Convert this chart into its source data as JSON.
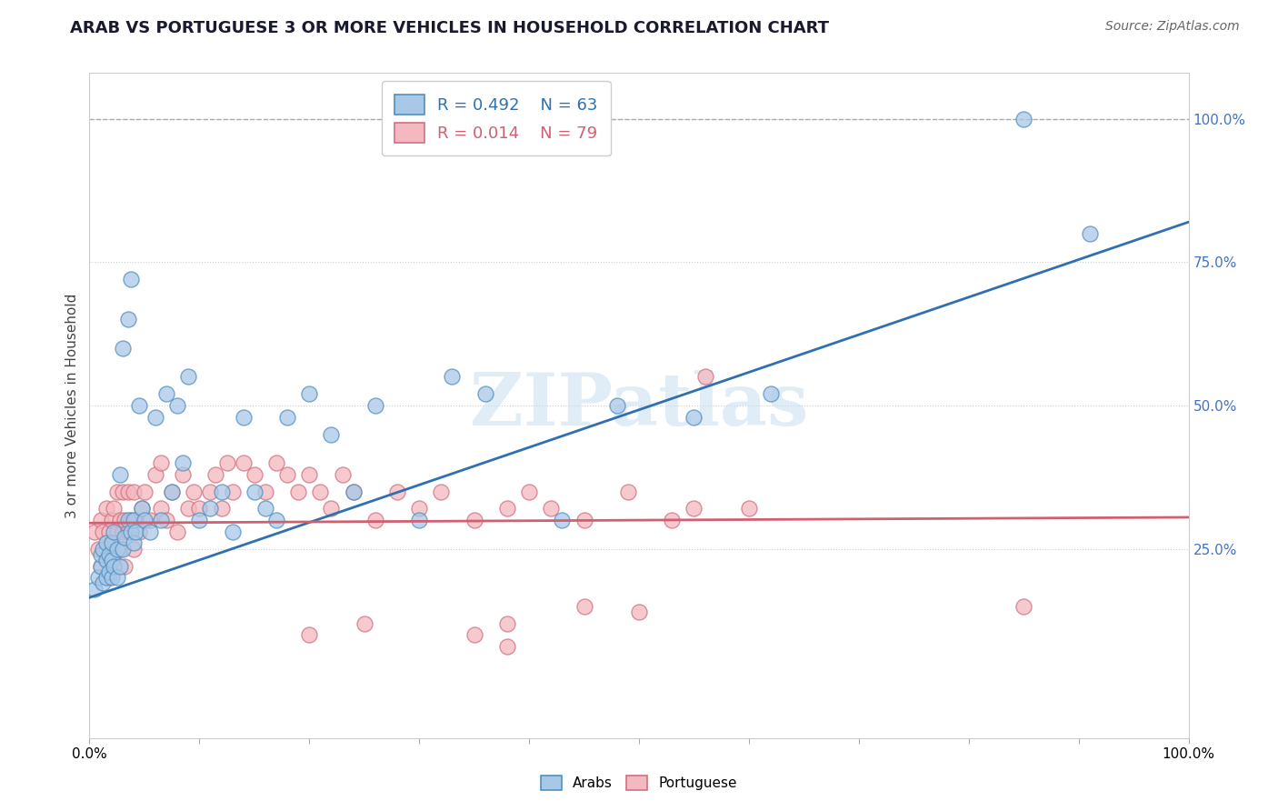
{
  "title": "ARAB VS PORTUGUESE 3 OR MORE VEHICLES IN HOUSEHOLD CORRELATION CHART",
  "source": "Source: ZipAtlas.com",
  "ylabel": "3 or more Vehicles in Household",
  "watermark": "ZIPatlas",
  "arab_r": 0.492,
  "arab_n": 63,
  "port_r": 0.014,
  "port_n": 79,
  "arab_color": "#a8c8e8",
  "port_color": "#f4b8c0",
  "arab_edge_color": "#5090c0",
  "port_edge_color": "#d07080",
  "arab_line_color": "#3070b0",
  "port_line_color": "#d06070",
  "right_ytick_labels": [
    "25.0%",
    "50.0%",
    "75.0%",
    "100.0%"
  ],
  "right_ytick_values": [
    0.25,
    0.5,
    0.75,
    1.0
  ],
  "xlim": [
    0.0,
    1.0
  ],
  "ylim": [
    -0.08,
    1.08
  ],
  "arab_line_y0": 0.165,
  "arab_line_y1": 0.82,
  "port_line_y0": 0.295,
  "port_line_y1": 0.305,
  "dashed_line_y": 1.0,
  "background_color": "#ffffff",
  "title_fontsize": 13,
  "axis_fontsize": 11,
  "legend_fontsize": 13,
  "arab_scatter_x": [
    0.005,
    0.008,
    0.01,
    0.01,
    0.012,
    0.012,
    0.015,
    0.015,
    0.015,
    0.018,
    0.018,
    0.02,
    0.02,
    0.02,
    0.022,
    0.022,
    0.025,
    0.025,
    0.028,
    0.028,
    0.03,
    0.03,
    0.032,
    0.035,
    0.035,
    0.038,
    0.038,
    0.04,
    0.04,
    0.042,
    0.045,
    0.048,
    0.05,
    0.055,
    0.06,
    0.065,
    0.07,
    0.075,
    0.08,
    0.085,
    0.09,
    0.1,
    0.11,
    0.12,
    0.13,
    0.14,
    0.15,
    0.16,
    0.17,
    0.18,
    0.2,
    0.22,
    0.24,
    0.26,
    0.3,
    0.33,
    0.36,
    0.43,
    0.48,
    0.55,
    0.62,
    0.85,
    0.91
  ],
  "arab_scatter_y": [
    0.18,
    0.2,
    0.22,
    0.24,
    0.19,
    0.25,
    0.2,
    0.23,
    0.26,
    0.21,
    0.24,
    0.2,
    0.23,
    0.26,
    0.22,
    0.28,
    0.2,
    0.25,
    0.38,
    0.22,
    0.6,
    0.25,
    0.27,
    0.65,
    0.3,
    0.72,
    0.28,
    0.26,
    0.3,
    0.28,
    0.5,
    0.32,
    0.3,
    0.28,
    0.48,
    0.3,
    0.52,
    0.35,
    0.5,
    0.4,
    0.55,
    0.3,
    0.32,
    0.35,
    0.28,
    0.48,
    0.35,
    0.32,
    0.3,
    0.48,
    0.52,
    0.45,
    0.35,
    0.5,
    0.3,
    0.55,
    0.52,
    0.3,
    0.5,
    0.48,
    0.52,
    1.0,
    0.8
  ],
  "port_scatter_x": [
    0.005,
    0.008,
    0.01,
    0.01,
    0.012,
    0.015,
    0.015,
    0.018,
    0.018,
    0.02,
    0.02,
    0.022,
    0.022,
    0.025,
    0.025,
    0.028,
    0.028,
    0.03,
    0.03,
    0.032,
    0.032,
    0.035,
    0.035,
    0.038,
    0.04,
    0.04,
    0.042,
    0.045,
    0.048,
    0.05,
    0.055,
    0.06,
    0.065,
    0.065,
    0.07,
    0.075,
    0.08,
    0.085,
    0.09,
    0.095,
    0.1,
    0.11,
    0.115,
    0.12,
    0.125,
    0.13,
    0.14,
    0.15,
    0.16,
    0.17,
    0.18,
    0.19,
    0.2,
    0.21,
    0.22,
    0.23,
    0.24,
    0.26,
    0.28,
    0.3,
    0.32,
    0.35,
    0.38,
    0.4,
    0.42,
    0.45,
    0.49,
    0.53,
    0.56,
    0.6,
    0.35,
    0.38,
    0.45,
    0.5,
    0.55,
    0.38,
    0.2,
    0.25,
    0.85
  ],
  "port_scatter_y": [
    0.28,
    0.25,
    0.22,
    0.3,
    0.28,
    0.25,
    0.32,
    0.2,
    0.28,
    0.26,
    0.3,
    0.24,
    0.32,
    0.28,
    0.35,
    0.25,
    0.3,
    0.28,
    0.35,
    0.22,
    0.3,
    0.28,
    0.35,
    0.3,
    0.25,
    0.35,
    0.3,
    0.28,
    0.32,
    0.35,
    0.3,
    0.38,
    0.32,
    0.4,
    0.3,
    0.35,
    0.28,
    0.38,
    0.32,
    0.35,
    0.32,
    0.35,
    0.38,
    0.32,
    0.4,
    0.35,
    0.4,
    0.38,
    0.35,
    0.4,
    0.38,
    0.35,
    0.38,
    0.35,
    0.32,
    0.38,
    0.35,
    0.3,
    0.35,
    0.32,
    0.35,
    0.3,
    0.32,
    0.35,
    0.32,
    0.3,
    0.35,
    0.3,
    0.55,
    0.32,
    0.1,
    0.12,
    0.15,
    0.14,
    0.32,
    0.08,
    0.1,
    0.12,
    0.15
  ]
}
